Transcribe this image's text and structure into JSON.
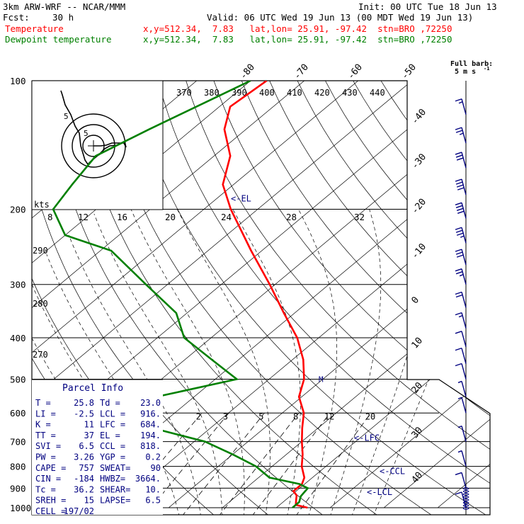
{
  "header": {
    "model": "3km ARW-WRF -- NCAR/MMM",
    "init": "Init: 00 UTC Tue 18 Jun 13",
    "fcst_label": "Fcst:",
    "fcst_value": "30 h",
    "valid": "Valid: 06 UTC Wed 19 Jun 13 (00 MDT Wed 19 Jun 13)",
    "temp_label": "Temperature",
    "temp_info": "x,y=512.34,  7.83   lat,lon= 25.91, -97.42  stn=BRO ,72250",
    "dew_label": "Dewpoint temperature",
    "dew_info": "x,y=512.34,  7.83   lat,lon= 25.91, -97.42  stn=BRO ,72250",
    "temp_color": "#ff0000",
    "dew_color": "#008000"
  },
  "barb_legend": {
    "line1": "Full barb:",
    "line2": "5 m s",
    "exp": "-1"
  },
  "chart_data": {
    "type": "line",
    "pressure_levels": [
      "100",
      "200",
      "300",
      "400",
      "500",
      "600",
      "700",
      "800",
      "900",
      "1000"
    ],
    "isotherm_labels": [
      "-80",
      "-70",
      "-60",
      "-50",
      "-40",
      "-30",
      "-20",
      "-10",
      "0",
      "10",
      "20",
      "30",
      "40"
    ],
    "theta_labels": [
      "370",
      "380",
      "390",
      "400",
      "410",
      "420",
      "430",
      "440"
    ],
    "theta_side_labels": [
      "290",
      "280",
      "270"
    ],
    "mixing_ratio_labels": [
      "2",
      "3",
      "5",
      "8",
      "12",
      "20"
    ],
    "hodograph_labels": [
      "kts",
      "8",
      "12",
      "16",
      "20",
      "24",
      "28",
      "32"
    ],
    "markers": {
      "el": "<-EL",
      "lfc": "<-LFC",
      "ccl": "<-CCL",
      "lcl": "<-LCL",
      "m": "M"
    },
    "temperature": [
      {
        "p": 100,
        "t": -77
      },
      {
        "p": 115,
        "t": -78
      },
      {
        "p": 130,
        "t": -74
      },
      {
        "p": 150,
        "t": -67
      },
      {
        "p": 175,
        "t": -62
      },
      {
        "p": 200,
        "t": -55
      },
      {
        "p": 250,
        "t": -42
      },
      {
        "p": 300,
        "t": -31
      },
      {
        "p": 350,
        "t": -22
      },
      {
        "p": 400,
        "t": -14
      },
      {
        "p": 450,
        "t": -8
      },
      {
        "p": 500,
        "t": -3.5
      },
      {
        "p": 550,
        "t": -0.5
      },
      {
        "p": 600,
        "t": 4
      },
      {
        "p": 650,
        "t": 7
      },
      {
        "p": 700,
        "t": 10
      },
      {
        "p": 750,
        "t": 13
      },
      {
        "p": 800,
        "t": 15.5
      },
      {
        "p": 850,
        "t": 18.5
      },
      {
        "p": 880,
        "t": 19.5
      },
      {
        "p": 915,
        "t": 19.5
      },
      {
        "p": 935,
        "t": 21
      },
      {
        "p": 960,
        "t": 22
      },
      {
        "p": 985,
        "t": 23
      },
      {
        "p": 1000,
        "t": 25.8
      }
    ],
    "dewpoint": [
      {
        "p": 100,
        "t": -80
      },
      {
        "p": 130,
        "t": -88
      },
      {
        "p": 150,
        "t": -92
      },
      {
        "p": 175,
        "t": -90
      },
      {
        "p": 200,
        "t": -88
      },
      {
        "p": 230,
        "t": -80
      },
      {
        "p": 250,
        "t": -68
      },
      {
        "p": 300,
        "t": -54
      },
      {
        "p": 350,
        "t": -42
      },
      {
        "p": 400,
        "t": -35
      },
      {
        "p": 450,
        "t": -25
      },
      {
        "p": 500,
        "t": -16
      },
      {
        "p": 550,
        "t": -27
      },
      {
        "p": 600,
        "t": -31
      },
      {
        "p": 650,
        "t": -21
      },
      {
        "p": 700,
        "t": -8
      },
      {
        "p": 750,
        "t": 0
      },
      {
        "p": 800,
        "t": 7
      },
      {
        "p": 850,
        "t": 12
      },
      {
        "p": 880,
        "t": 19
      },
      {
        "p": 900,
        "t": 21.5
      },
      {
        "p": 940,
        "t": 22
      },
      {
        "p": 970,
        "t": 23
      },
      {
        "p": 1000,
        "t": 23
      }
    ],
    "hodograph_trace": [
      [
        0,
        5
      ],
      [
        3,
        6
      ],
      [
        7,
        7
      ],
      [
        8,
        5
      ],
      [
        7,
        10
      ],
      [
        9,
        14
      ],
      [
        12,
        18
      ],
      [
        14,
        22
      ],
      [
        12,
        25
      ],
      [
        16,
        28
      ],
      [
        18,
        32
      ],
      [
        16,
        36
      ],
      [
        12,
        40
      ],
      [
        10,
        45
      ],
      [
        8,
        48
      ],
      [
        5,
        50
      ],
      [
        2,
        52
      ]
    ],
    "wind_barbs": [
      {
        "p": 120,
        "speed": 15
      },
      {
        "p": 140,
        "speed": 25
      },
      {
        "p": 160,
        "speed": 30
      },
      {
        "p": 185,
        "speed": 40
      },
      {
        "p": 210,
        "speed": 40
      },
      {
        "p": 240,
        "speed": 35
      },
      {
        "p": 270,
        "speed": 30
      },
      {
        "p": 300,
        "speed": 25
      },
      {
        "p": 340,
        "speed": 20
      },
      {
        "p": 380,
        "speed": 15
      },
      {
        "p": 420,
        "speed": 10
      },
      {
        "p": 460,
        "speed": 10
      },
      {
        "p": 500,
        "speed": 10
      },
      {
        "p": 550,
        "speed": 5
      },
      {
        "p": 600,
        "speed": 5
      },
      {
        "p": 700,
        "speed": 5
      },
      {
        "p": 800,
        "speed": 5
      },
      {
        "p": 900,
        "speed": 10
      },
      {
        "p": 1000,
        "speed": 10
      }
    ]
  },
  "parcel": {
    "title": "Parcel Info",
    "rows": [
      {
        "l": "T  =",
        "lv": "25.8",
        "r": "Td =",
        "rv": "23.0"
      },
      {
        "l": "LI =",
        "lv": "-2.5",
        "r": "LCL =",
        "rv": "916."
      },
      {
        "l": "K  =",
        "lv": "11",
        "r": "LFC =",
        "rv": "684."
      },
      {
        "l": "TT =",
        "lv": "37",
        "r": "EL  =",
        "rv": "194."
      },
      {
        "l": "SVI =",
        "lv": "6.5",
        "r": "CCL =",
        "rv": "818."
      },
      {
        "l": "PW =",
        "lv": "3.26",
        "r": "YGP =",
        "rv": "0.2"
      },
      {
        "l": "CAPE =",
        "lv": "757",
        "r": "SWEAT=",
        "rv": "90"
      },
      {
        "l": "CIN =",
        "lv": "-184",
        "r": "HWBZ=",
        "rv": "3664."
      },
      {
        "l": "Tc =",
        "lv": "36.2",
        "r": "SHEAR=",
        "rv": "10."
      },
      {
        "l": "SREH =",
        "lv": "15",
        "r": "LAPSE=",
        "rv": "6.5"
      },
      {
        "l": "CELL =",
        "lv": "197/02",
        "r": "",
        "rv": ""
      }
    ]
  }
}
